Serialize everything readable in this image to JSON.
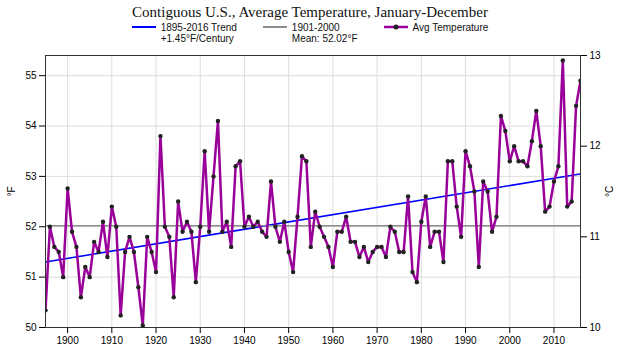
{
  "chart_data": {
    "type": "line",
    "title": "Contiguous U.S., Average Temperature, January-December",
    "y_label": "°F",
    "y2_label": "°C",
    "x": [
      1895,
      1896,
      1897,
      1898,
      1899,
      1900,
      1901,
      1902,
      1903,
      1904,
      1905,
      1906,
      1907,
      1908,
      1909,
      1910,
      1911,
      1912,
      1913,
      1914,
      1915,
      1916,
      1917,
      1918,
      1919,
      1920,
      1921,
      1922,
      1923,
      1924,
      1925,
      1926,
      1927,
      1928,
      1929,
      1930,
      1931,
      1932,
      1933,
      1934,
      1935,
      1936,
      1937,
      1938,
      1939,
      1940,
      1941,
      1942,
      1943,
      1944,
      1945,
      1946,
      1947,
      1948,
      1949,
      1950,
      1951,
      1952,
      1953,
      1954,
      1955,
      1956,
      1957,
      1958,
      1959,
      1960,
      1961,
      1962,
      1963,
      1964,
      1965,
      1966,
      1967,
      1968,
      1969,
      1970,
      1971,
      1972,
      1973,
      1974,
      1975,
      1976,
      1977,
      1978,
      1979,
      1980,
      1981,
      1982,
      1983,
      1984,
      1985,
      1986,
      1987,
      1988,
      1989,
      1990,
      1991,
      1992,
      1993,
      1994,
      1995,
      1996,
      1997,
      1998,
      1999,
      2000,
      2001,
      2002,
      2003,
      2004,
      2005,
      2006,
      2007,
      2008,
      2009,
      2010,
      2011,
      2012,
      2013,
      2014,
      2015,
      2016
    ],
    "series": [
      {
        "name": "1895-2016 Trend\n+1.45°F/Century",
        "color": "#0000ff",
        "type": "line",
        "x": [
          1895,
          2016
        ],
        "values": [
          51.3,
          53.05
        ]
      },
      {
        "name": "1901-2000\nMean: 52.02°F",
        "color": "#8c8c8c",
        "type": "line",
        "x": [
          1895,
          2016
        ],
        "values": [
          52.02,
          52.02
        ]
      },
      {
        "name": "Avg Temperature",
        "color": "#990099",
        "type": "line",
        "marker": "circle",
        "values": [
          50.34,
          52.0,
          51.6,
          51.5,
          51.0,
          52.76,
          51.9,
          51.6,
          50.6,
          51.2,
          51.0,
          51.7,
          51.5,
          52.1,
          51.4,
          52.4,
          52.0,
          50.24,
          51.5,
          51.8,
          51.5,
          50.8,
          50.04,
          51.8,
          51.5,
          51.1,
          53.8,
          52.0,
          51.8,
          50.6,
          52.5,
          51.9,
          52.1,
          51.9,
          50.9,
          52.0,
          53.5,
          51.9,
          53.0,
          54.1,
          51.9,
          52.1,
          51.6,
          53.2,
          53.3,
          52.0,
          52.2,
          52.0,
          52.1,
          51.9,
          51.8,
          52.9,
          52.0,
          51.7,
          52.1,
          51.5,
          51.1,
          52.2,
          53.4,
          53.3,
          51.6,
          52.3,
          52.0,
          51.8,
          51.6,
          51.2,
          51.9,
          51.9,
          52.2,
          51.7,
          51.7,
          51.4,
          51.6,
          51.3,
          51.5,
          51.6,
          51.6,
          51.4,
          52.0,
          51.9,
          51.5,
          51.5,
          52.6,
          51.1,
          50.9,
          52.1,
          52.6,
          51.6,
          51.9,
          51.9,
          51.3,
          53.3,
          53.3,
          52.4,
          51.8,
          53.5,
          53.2,
          52.7,
          51.2,
          52.9,
          52.7,
          51.9,
          52.2,
          54.2,
          53.9,
          53.3,
          53.6,
          53.3,
          53.3,
          53.2,
          53.7,
          54.3,
          53.6,
          52.3,
          52.4,
          52.9,
          53.2,
          55.3,
          52.4,
          52.5,
          54.4,
          54.9
        ]
      }
    ],
    "xlim": [
      1895,
      2016
    ],
    "xticks": [
      1900,
      1910,
      1920,
      1930,
      1940,
      1950,
      1960,
      1970,
      1980,
      1990,
      2000,
      2010
    ],
    "ylim": [
      50,
      55.4
    ],
    "yticks": [
      50,
      51,
      52,
      53,
      54,
      55
    ],
    "y2lim": [
      10,
      13
    ],
    "y2ticks": [
      10,
      11,
      12,
      13
    ],
    "grid": true,
    "legend": "top"
  }
}
